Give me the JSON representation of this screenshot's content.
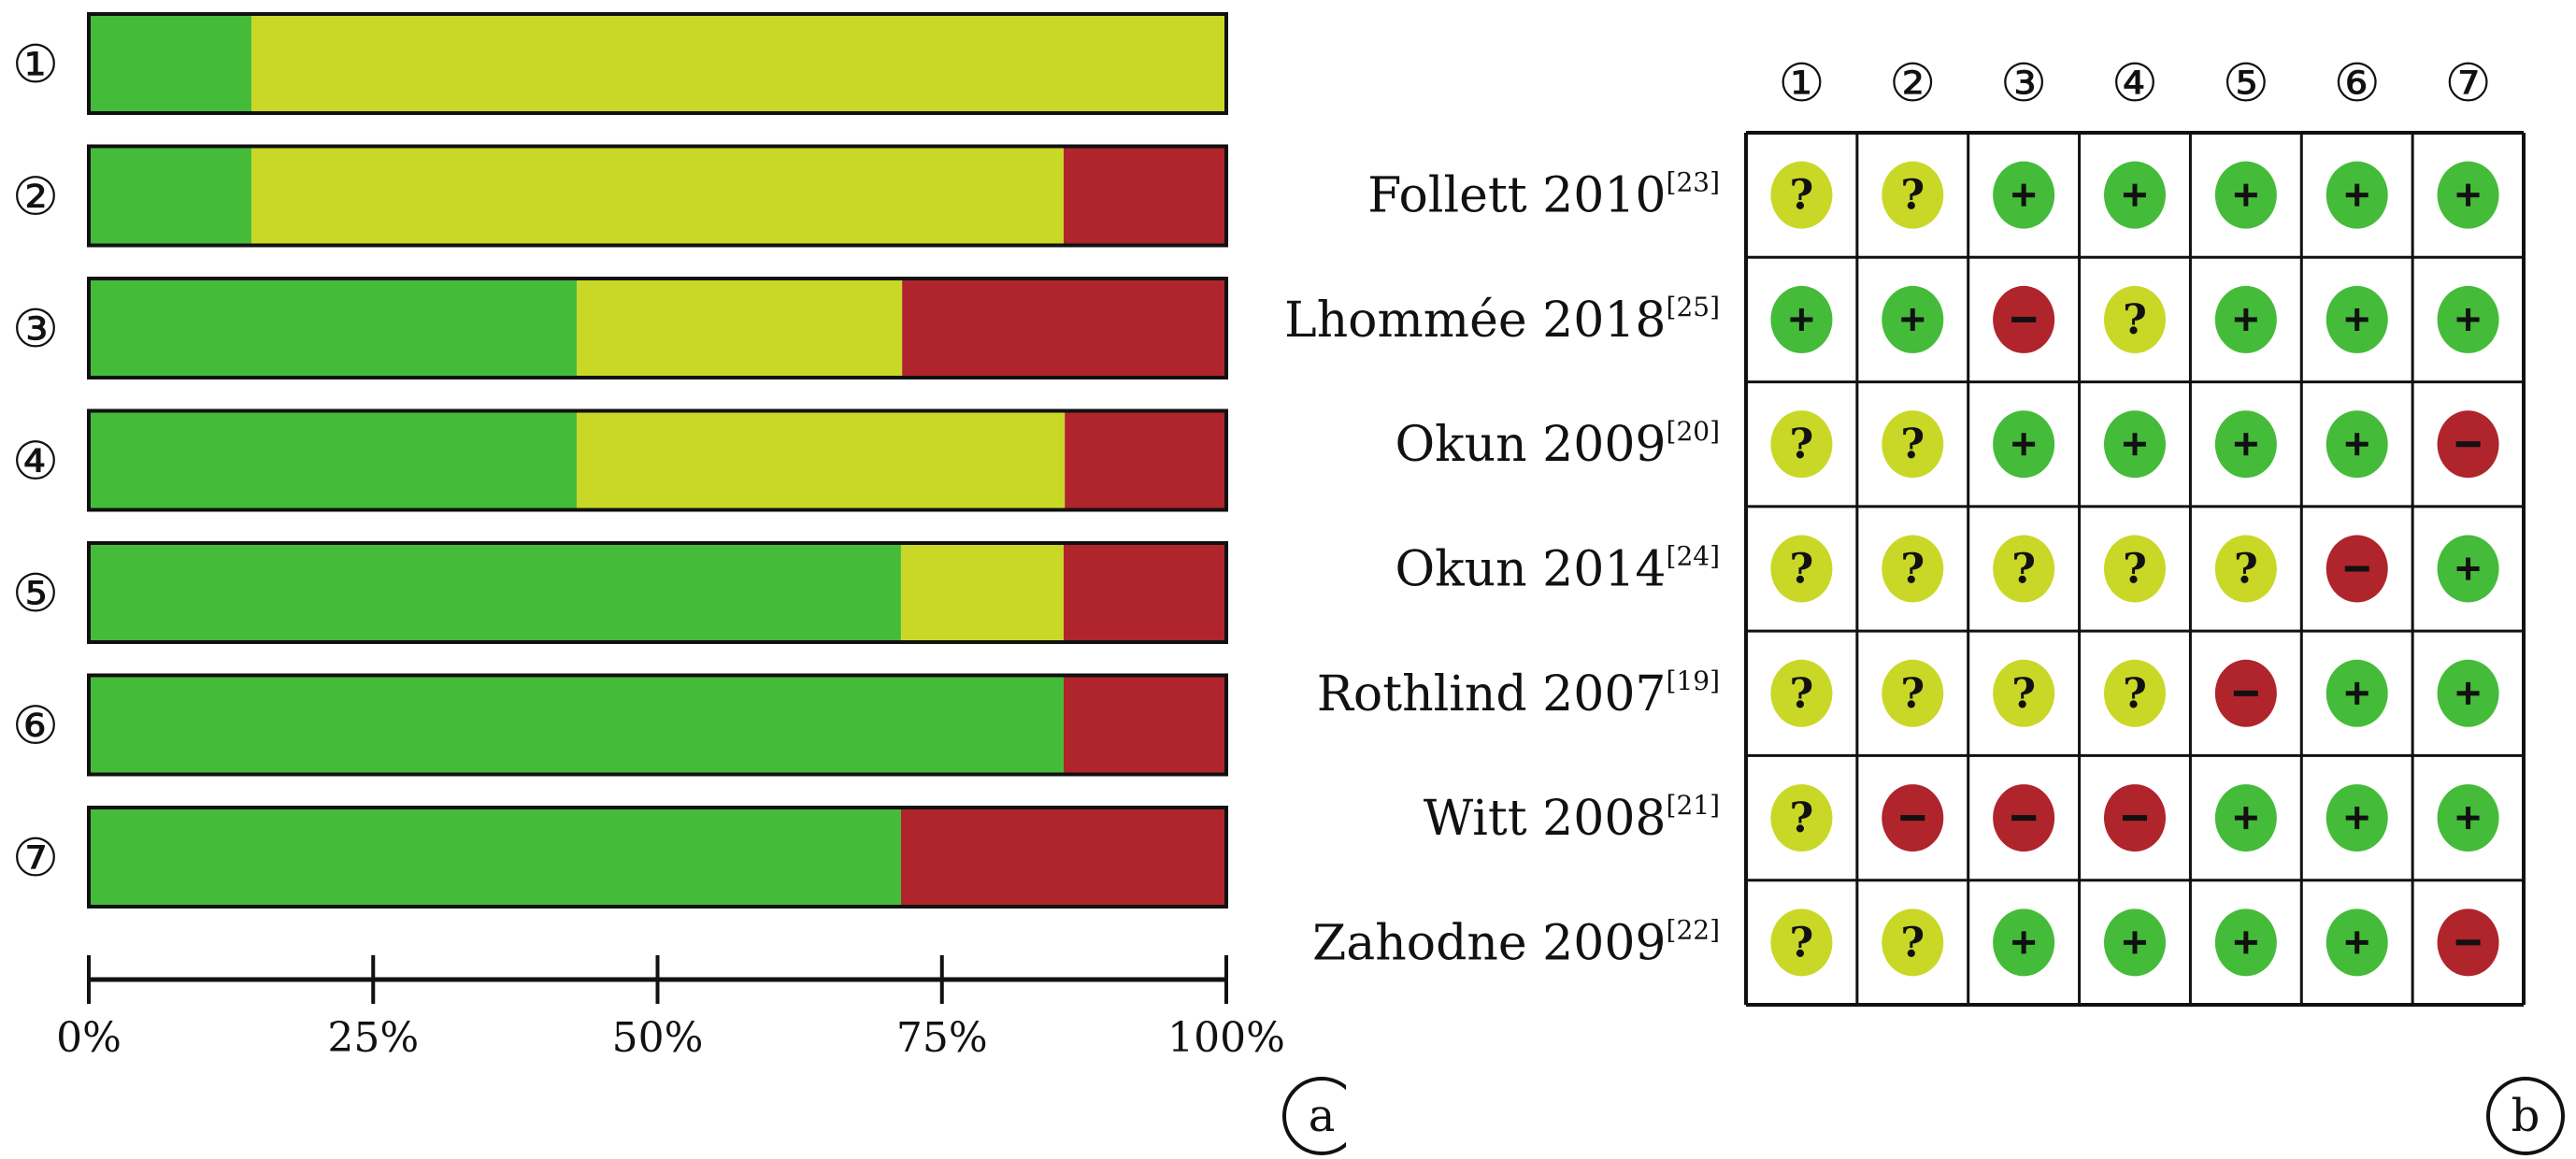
{
  "colors": {
    "low": "#45bb3a",
    "unclear": "#c9d827",
    "high": "#b0242c",
    "border": "#111111"
  },
  "icons": {
    "low": "+",
    "unclear": "?",
    "high": "−"
  },
  "chart_data": [
    {
      "type": "bar",
      "orientation": "horizontal",
      "stacked": true,
      "panel_label": "a",
      "categories": [
        "①",
        "②",
        "③",
        "④",
        "⑤",
        "⑥",
        "⑦"
      ],
      "series": [
        {
          "key": "low",
          "values": [
            14.3,
            14.3,
            42.9,
            42.9,
            71.4,
            85.7,
            71.4
          ]
        },
        {
          "key": "unclear",
          "values": [
            85.7,
            71.4,
            28.6,
            42.9,
            14.3,
            0,
            0
          ]
        },
        {
          "key": "high",
          "values": [
            0,
            14.3,
            28.5,
            14.2,
            14.3,
            14.3,
            28.6
          ]
        }
      ],
      "xlim": [
        0,
        100
      ],
      "xticks": [
        0,
        25,
        50,
        75,
        100
      ],
      "xticklabels": [
        "0%",
        "25%",
        "50%",
        "75%",
        "100%"
      ],
      "grid": false
    },
    {
      "type": "table",
      "panel_label": "b",
      "columns": [
        "①",
        "②",
        "③",
        "④",
        "⑤",
        "⑥",
        "⑦"
      ],
      "rows": [
        {
          "study": "Follett 2010",
          "ref": "[23]",
          "ratings": [
            "unclear",
            "unclear",
            "low",
            "low",
            "low",
            "low",
            "low"
          ]
        },
        {
          "study": "Lhommée 2018",
          "ref": "[25]",
          "ratings": [
            "low",
            "low",
            "high",
            "unclear",
            "low",
            "low",
            "low"
          ]
        },
        {
          "study": "Okun 2009",
          "ref": "[20]",
          "ratings": [
            "unclear",
            "unclear",
            "low",
            "low",
            "low",
            "low",
            "high"
          ]
        },
        {
          "study": "Okun 2014",
          "ref": "[24]",
          "ratings": [
            "unclear",
            "unclear",
            "unclear",
            "unclear",
            "unclear",
            "high",
            "low"
          ]
        },
        {
          "study": "Rothlind 2007",
          "ref": "[19]",
          "ratings": [
            "unclear",
            "unclear",
            "unclear",
            "unclear",
            "high",
            "low",
            "low"
          ]
        },
        {
          "study": "Witt 2008",
          "ref": "[21]",
          "ratings": [
            "unclear",
            "high",
            "high",
            "high",
            "low",
            "low",
            "low"
          ]
        },
        {
          "study": "Zahodne 2009",
          "ref": "[22]",
          "ratings": [
            "unclear",
            "unclear",
            "low",
            "low",
            "low",
            "low",
            "high"
          ]
        }
      ]
    }
  ]
}
